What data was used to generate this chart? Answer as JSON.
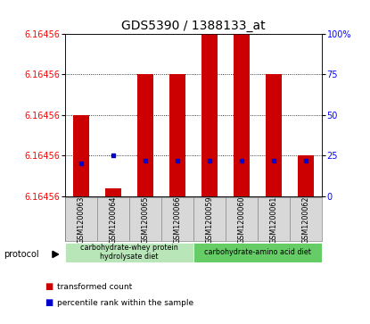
{
  "title": "GDS5390 / 1388133_at",
  "samples": [
    "GSM1200063",
    "GSM1200064",
    "GSM1200065",
    "GSM1200066",
    "GSM1200059",
    "GSM1200060",
    "GSM1200061",
    "GSM1200062"
  ],
  "red_bar_heights": [
    50,
    5,
    75,
    75,
    100,
    100,
    75,
    25
  ],
  "blue_dot_y": [
    20,
    25,
    22,
    22,
    22,
    22,
    22,
    22
  ],
  "y_axis_label": "6.16456",
  "protocol_label": "protocol",
  "group1_label": "carbohydrate-whey protein\nhydrolysate diet",
  "group2_label": "carbohydrate-amino acid diet",
  "group1_samples": [
    0,
    1,
    2,
    3
  ],
  "group2_samples": [
    4,
    5,
    6,
    7
  ],
  "group1_color": "#b8e6b8",
  "group2_color": "#66cc66",
  "bar_color": "#cc0000",
  "dot_color": "#0000cc",
  "bg_color": "#d8d8d8",
  "legend_red": "transformed count",
  "legend_blue": "percentile rank within the sample",
  "title_fontsize": 10,
  "tick_fontsize": 7,
  "label_fontsize": 7
}
